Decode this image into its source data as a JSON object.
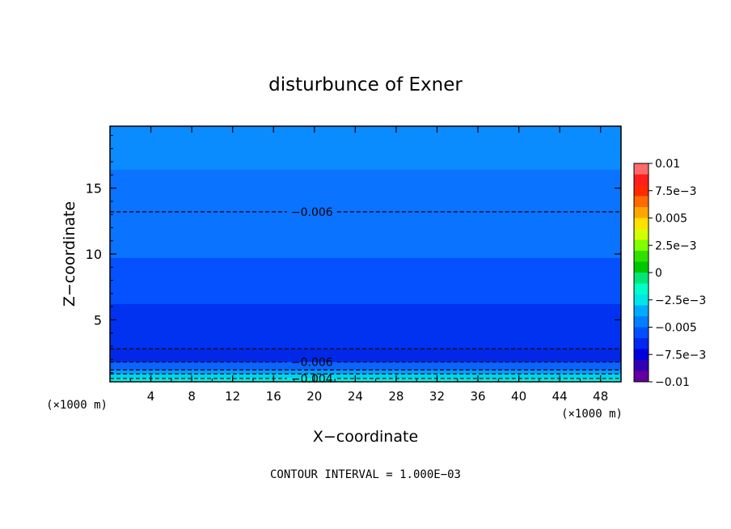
{
  "chart_data": {
    "type": "contour",
    "title": "disturbunce of Exner",
    "xlabel": "X−coordinate",
    "ylabel": "Z−coordinate",
    "xunit": "(×1000 m)",
    "yunit": "(×1000 m)",
    "xlim": [
      0,
      50
    ],
    "ylim": [
      0.3,
      19.7
    ],
    "xticks": [
      "4",
      "8",
      "12",
      "16",
      "20",
      "24",
      "28",
      "32",
      "36",
      "40",
      "44",
      "48"
    ],
    "yticks": [
      "5",
      "10",
      "15"
    ],
    "footer": "CONTOUR INTERVAL = 1.000E−03",
    "colorbar": {
      "labels": [
        "0.01",
        "7.5e−3",
        "0.005",
        "2.5e−3",
        "0",
        "−2.5e−3",
        "−0.005",
        "−7.5e−3",
        "−0.01"
      ],
      "colors": [
        "#ff6a6a",
        "#ff1e1e",
        "#ff2a00",
        "#ff6a00",
        "#ffa500",
        "#ffe000",
        "#d4ff00",
        "#80ff00",
        "#30e000",
        "#00c800",
        "#00e678",
        "#00ffc8",
        "#00e6e6",
        "#00aaff",
        "#0080ff",
        "#0050ff",
        "#0028f0",
        "#0000dc",
        "#3200b4",
        "#6400a0"
      ]
    },
    "bands": [
      {
        "zmin": 16.4,
        "zmax": 19.7,
        "color": "#0a8cff"
      },
      {
        "zmin": 9.7,
        "zmax": 16.4,
        "color": "#0a73ff"
      },
      {
        "zmin": 6.2,
        "zmax": 9.7,
        "color": "#0550ff"
      },
      {
        "zmin": 2.8,
        "zmax": 6.2,
        "color": "#0032f0"
      },
      {
        "zmin": 1.8,
        "zmax": 2.8,
        "color": "#0028e6"
      },
      {
        "zmin": 1.2,
        "zmax": 1.8,
        "color": "#0a64ff"
      },
      {
        "zmin": 0.9,
        "zmax": 1.2,
        "color": "#00a0ff"
      },
      {
        "zmin": 0.6,
        "zmax": 0.9,
        "color": "#00d2f0"
      },
      {
        "zmin": 0.3,
        "zmax": 0.6,
        "color": "#00f0e6"
      }
    ],
    "contours": [
      {
        "z": 13.2,
        "label": "−0.006",
        "label_x": 20
      },
      {
        "z": 2.8
      },
      {
        "z": 1.8,
        "label": "−0.006",
        "label_x": 20
      },
      {
        "z": 1.2
      },
      {
        "z": 0.9
      },
      {
        "z": 0.55,
        "label": "−0.004",
        "label_x": 20
      }
    ]
  }
}
